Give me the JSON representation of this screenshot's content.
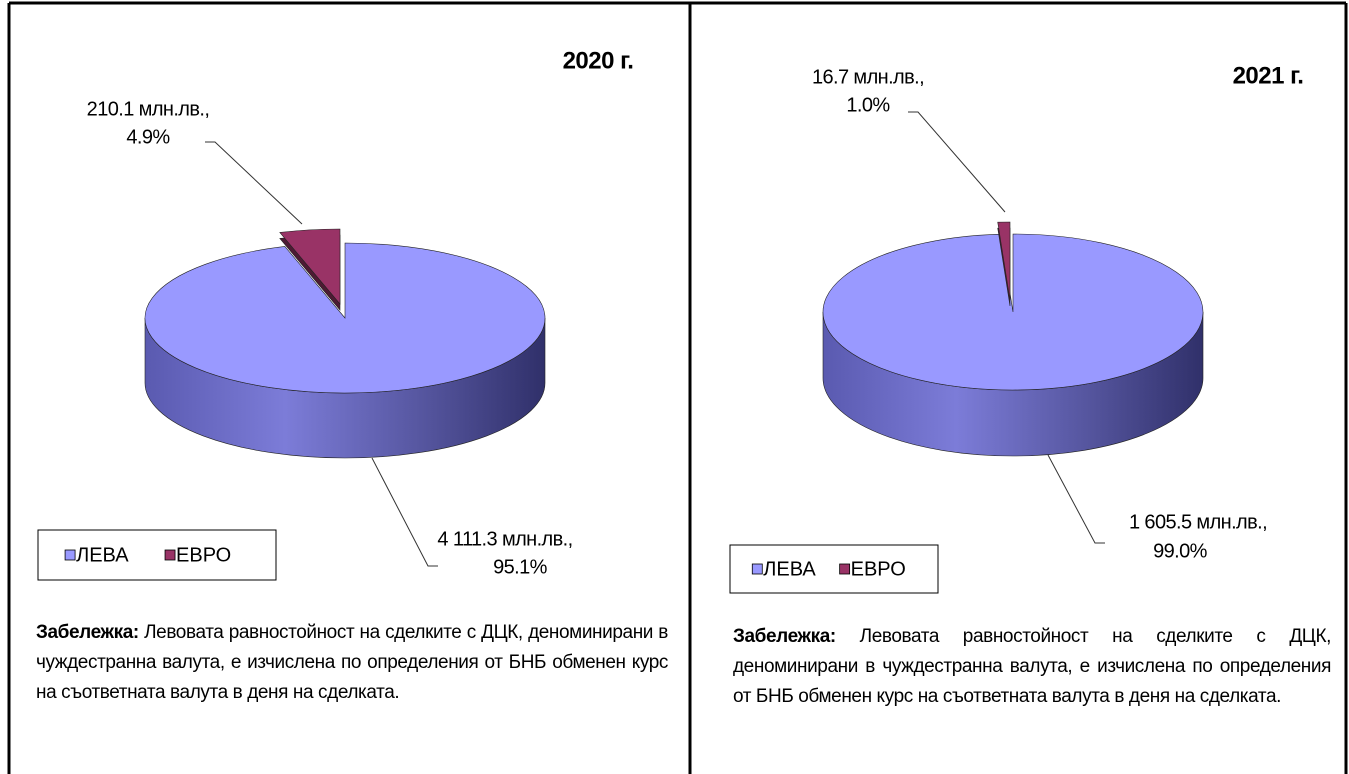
{
  "chart_data": [
    {
      "type": "pie",
      "title": "2020 г.",
      "categories": [
        "ЛЕВА",
        "ЕВРО"
      ],
      "values": [
        4111.3,
        210.1
      ],
      "colors": [
        "#9999ff",
        "#993366"
      ],
      "value_labels": [
        "4 111.3 млн.лв.,",
        "210.1 млн.лв.,"
      ],
      "percent_labels": [
        "95.1%",
        "4.9%"
      ],
      "note_label": "Забележка:",
      "note": "Левовата равностойност на сделките с ДЦК, деноминирани в чуждестранна валута, е изчислена по определения от БНБ обменен курс на съответната валута в деня на сделката."
    },
    {
      "type": "pie",
      "title": "2021 г.",
      "categories": [
        "ЛЕВА",
        "ЕВРО"
      ],
      "values": [
        1605.5,
        16.7
      ],
      "colors": [
        "#9999ff",
        "#993366"
      ],
      "value_labels": [
        "1 605.5 млн.лв.,",
        "16.7 млн.лв.,"
      ],
      "percent_labels": [
        "99.0%",
        "1.0%"
      ],
      "note_label": "Забележка:",
      "note": "Левовата равностойност на сделките с ДЦК, деноминирани в чуждестранна валута, е изчислена по определения от БНБ обменен курс на съответната валута в деня на сделката."
    }
  ]
}
